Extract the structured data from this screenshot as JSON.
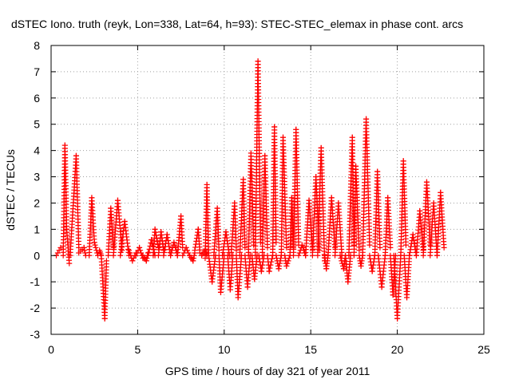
{
  "chart_data": {
    "type": "scatter",
    "title": "dSTEC Iono. truth (reyk, Lon=338, Lat=64, h=93): STEC-STEC_elemax in phase cont. arcs",
    "xlabel": "GPS time / hours of day 321 of year 2011",
    "ylabel": "dSTEC  / TECUs",
    "xlim": [
      0,
      25
    ],
    "ylim": [
      -3,
      8
    ],
    "xticks": [
      "0",
      "5",
      "10",
      "15",
      "20",
      "25"
    ],
    "yticks": [
      "-3",
      "-2",
      "-1",
      "0",
      "1",
      "2",
      "3",
      "4",
      "5",
      "6",
      "7",
      "8"
    ],
    "grid": true,
    "marker": "+",
    "color": "#ff0000",
    "arcs": [
      {
        "x": [
          0.3,
          0.55
        ],
        "y": [
          0.0,
          0.3
        ]
      },
      {
        "x": [
          0.7,
          0.8,
          0.9,
          1.05
        ],
        "y": [
          0.0,
          4.2,
          1.0,
          -0.3
        ]
      },
      {
        "x": [
          1.1,
          1.45,
          1.6
        ],
        "y": [
          0.0,
          3.8,
          0.3
        ]
      },
      {
        "x": [
          1.6,
          1.9,
          2.0
        ],
        "y": [
          0.1,
          0.3,
          0.0
        ]
      },
      {
        "x": [
          2.2,
          2.35,
          2.5,
          2.7
        ],
        "y": [
          0.0,
          2.2,
          0.5,
          0.0
        ]
      },
      {
        "x": [
          2.8,
          2.9
        ],
        "y": [
          0.2,
          0.0
        ]
      },
      {
        "x": [
          2.9,
          3.1,
          3.2
        ],
        "y": [
          0.0,
          -2.4,
          -0.2
        ]
      },
      {
        "x": [
          3.3,
          3.45,
          3.6
        ],
        "y": [
          0.0,
          1.8,
          0.3
        ]
      },
      {
        "x": [
          3.6,
          3.85,
          4.1
        ],
        "y": [
          0.0,
          2.1,
          0.2
        ]
      },
      {
        "x": [
          4.0,
          4.25,
          4.5
        ],
        "y": [
          0.0,
          1.3,
          0.0
        ]
      },
      {
        "x": [
          4.5,
          4.7,
          4.9
        ],
        "y": [
          0.2,
          -0.2,
          0.1
        ]
      },
      {
        "x": [
          4.9,
          5.1,
          5.3
        ],
        "y": [
          0.0,
          0.3,
          -0.1
        ]
      },
      {
        "x": [
          5.3,
          5.5,
          5.6
        ],
        "y": [
          0.0,
          -0.2,
          0.1
        ]
      },
      {
        "x": [
          5.6,
          5.8,
          6.0
        ],
        "y": [
          0.0,
          0.6,
          0.0
        ]
      },
      {
        "x": [
          5.9,
          6.0,
          6.2
        ],
        "y": [
          0.0,
          1.0,
          0.3
        ]
      },
      {
        "x": [
          6.2,
          6.35,
          6.5
        ],
        "y": [
          0.0,
          0.9,
          0.2
        ]
      },
      {
        "x": [
          6.5,
          6.7,
          6.9
        ],
        "y": [
          0.0,
          0.8,
          0.0
        ]
      },
      {
        "x": [
          6.9,
          7.1,
          7.3
        ],
        "y": [
          0.0,
          0.5,
          0.0
        ]
      },
      {
        "x": [
          7.3,
          7.5,
          7.6
        ],
        "y": [
          0.0,
          1.5,
          0.3
        ]
      },
      {
        "x": [
          7.6,
          7.8,
          8.0
        ],
        "y": [
          0.0,
          0.3,
          0.0
        ]
      },
      {
        "x": [
          8.0,
          8.2,
          8.3
        ],
        "y": [
          0.0,
          -0.2,
          0.1
        ]
      },
      {
        "x": [
          8.3,
          8.5,
          8.6
        ],
        "y": [
          0.2,
          1.0,
          0.1
        ]
      },
      {
        "x": [
          8.7,
          8.9,
          9.0
        ],
        "y": [
          0.0,
          0.2,
          0.0
        ]
      },
      {
        "x": [
          8.9,
          9.0,
          9.1
        ],
        "y": [
          -0.1,
          2.7,
          0.1
        ]
      },
      {
        "x": [
          9.1,
          9.3,
          9.5
        ],
        "y": [
          0.0,
          -1.0,
          0.0
        ]
      },
      {
        "x": [
          9.4,
          9.6,
          9.7
        ],
        "y": [
          0.0,
          1.8,
          0.2
        ]
      },
      {
        "x": [
          9.7,
          9.8,
          10.0
        ],
        "y": [
          0.0,
          -1.4,
          0.0
        ]
      },
      {
        "x": [
          9.9,
          10.1,
          10.3
        ],
        "y": [
          0.0,
          0.9,
          0.0
        ]
      },
      {
        "x": [
          10.2,
          10.35,
          10.5
        ],
        "y": [
          0.0,
          -1.3,
          0.0
        ]
      },
      {
        "x": [
          10.4,
          10.6,
          10.7
        ],
        "y": [
          0.0,
          2.0,
          0.2
        ]
      },
      {
        "x": [
          10.7,
          10.8,
          11.0
        ],
        "y": [
          0.0,
          -1.6,
          0.0
        ]
      },
      {
        "x": [
          10.9,
          11.1,
          11.2
        ],
        "y": [
          0.0,
          2.9,
          0.3
        ]
      },
      {
        "x": [
          11.2,
          11.35,
          11.5
        ],
        "y": [
          0.0,
          -1.2,
          0.0
        ]
      },
      {
        "x": [
          11.4,
          11.55,
          11.7
        ],
        "y": [
          0.0,
          3.9,
          0.4
        ]
      },
      {
        "x": [
          11.6,
          11.75,
          11.9
        ],
        "y": [
          0.0,
          -0.9,
          0.0
        ]
      },
      {
        "x": [
          11.8,
          11.95,
          12.1
        ],
        "y": [
          0.0,
          7.4,
          0.5
        ]
      },
      {
        "x": [
          12.0,
          12.15,
          12.3
        ],
        "y": [
          0.0,
          -0.6,
          0.0
        ]
      },
      {
        "x": [
          12.2,
          12.35,
          12.5
        ],
        "y": [
          0.0,
          3.8,
          0.3
        ]
      },
      {
        "x": [
          12.5,
          12.6,
          12.8
        ],
        "y": [
          0.0,
          -0.6,
          0.0
        ]
      },
      {
        "x": [
          12.8,
          12.9,
          13.0
        ],
        "y": [
          0.0,
          4.9,
          0.5
        ]
      },
      {
        "x": [
          13.0,
          13.15,
          13.3
        ],
        "y": [
          0.0,
          -0.5,
          0.0
        ]
      },
      {
        "x": [
          13.3,
          13.4,
          13.6
        ],
        "y": [
          0.0,
          4.5,
          0.3
        ]
      },
      {
        "x": [
          13.5,
          13.6,
          13.8
        ],
        "y": [
          0.0,
          -0.4,
          0.0
        ]
      },
      {
        "x": [
          13.8,
          13.9,
          14.0
        ],
        "y": [
          0.0,
          2.2,
          0.3
        ]
      },
      {
        "x": [
          14.0,
          14.15,
          14.3
        ],
        "y": [
          0.0,
          4.8,
          0.4
        ]
      },
      {
        "x": [
          14.3,
          14.5,
          14.7
        ],
        "y": [
          0.0,
          0.4,
          0.0
        ]
      },
      {
        "x": [
          14.7,
          14.9,
          15.1
        ],
        "y": [
          0.0,
          2.1,
          0.2
        ]
      },
      {
        "x": [
          15.1,
          15.3,
          15.5
        ],
        "y": [
          0.0,
          3.0,
          0.2
        ]
      },
      {
        "x": [
          15.4,
          15.6,
          15.8
        ],
        "y": [
          0.0,
          4.1,
          -0.2
        ]
      },
      {
        "x": [
          15.8,
          15.9,
          16.0
        ],
        "y": [
          0.0,
          -0.5,
          0.0
        ]
      },
      {
        "x": [
          16.0,
          16.2,
          16.4
        ],
        "y": [
          0.0,
          2.2,
          0.3
        ]
      },
      {
        "x": [
          16.4,
          16.6,
          16.8
        ],
        "y": [
          0.0,
          2.0,
          0.0
        ]
      },
      {
        "x": [
          16.7,
          16.9,
          17.0
        ],
        "y": [
          0.0,
          -0.5,
          0.0
        ]
      },
      {
        "x": [
          17.0,
          17.15,
          17.3
        ],
        "y": [
          0.0,
          -1.0,
          0.0
        ]
      },
      {
        "x": [
          17.2,
          17.4,
          17.5
        ],
        "y": [
          0.0,
          4.5,
          0.4
        ]
      },
      {
        "x": [
          17.5,
          17.6,
          17.8
        ],
        "y": [
          0.0,
          3.4,
          0.2
        ]
      },
      {
        "x": [
          17.8,
          17.9,
          18.0
        ],
        "y": [
          0.0,
          -0.4,
          0.0
        ]
      },
      {
        "x": [
          18.0,
          18.2,
          18.4
        ],
        "y": [
          0.0,
          5.2,
          0.4
        ]
      },
      {
        "x": [
          18.4,
          18.55,
          18.7
        ],
        "y": [
          0.0,
          -0.6,
          0.0
        ]
      },
      {
        "x": [
          18.7,
          18.85,
          19.0
        ],
        "y": [
          0.0,
          3.2,
          0.3
        ]
      },
      {
        "x": [
          18.9,
          19.1,
          19.3
        ],
        "y": [
          0.0,
          -1.2,
          0.0
        ]
      },
      {
        "x": [
          19.3,
          19.45,
          19.6
        ],
        "y": [
          0.0,
          2.2,
          0.3
        ]
      },
      {
        "x": [
          19.6,
          19.75,
          19.9
        ],
        "y": [
          0.0,
          -1.5,
          0.0
        ]
      },
      {
        "x": [
          19.8,
          20.0,
          20.2
        ],
        "y": [
          0.0,
          -2.4,
          0.0
        ]
      },
      {
        "x": [
          20.2,
          20.35,
          20.5
        ],
        "y": [
          0.0,
          3.6,
          0.4
        ]
      },
      {
        "x": [
          20.4,
          20.55,
          20.7
        ],
        "y": [
          0.0,
          -1.6,
          0.0
        ]
      },
      {
        "x": [
          20.7,
          20.9,
          21.1
        ],
        "y": [
          0.0,
          0.8,
          0.0
        ]
      },
      {
        "x": [
          21.1,
          21.3,
          21.5
        ],
        "y": [
          0.0,
          1.7,
          0.2
        ]
      },
      {
        "x": [
          21.5,
          21.7,
          21.9
        ],
        "y": [
          0.0,
          2.8,
          0.4
        ]
      },
      {
        "x": [
          21.9,
          22.1,
          22.3
        ],
        "y": [
          0.0,
          2.0,
          0.0
        ]
      },
      {
        "x": [
          22.3,
          22.5,
          22.7
        ],
        "y": [
          0.0,
          2.4,
          0.3
        ]
      }
    ]
  }
}
